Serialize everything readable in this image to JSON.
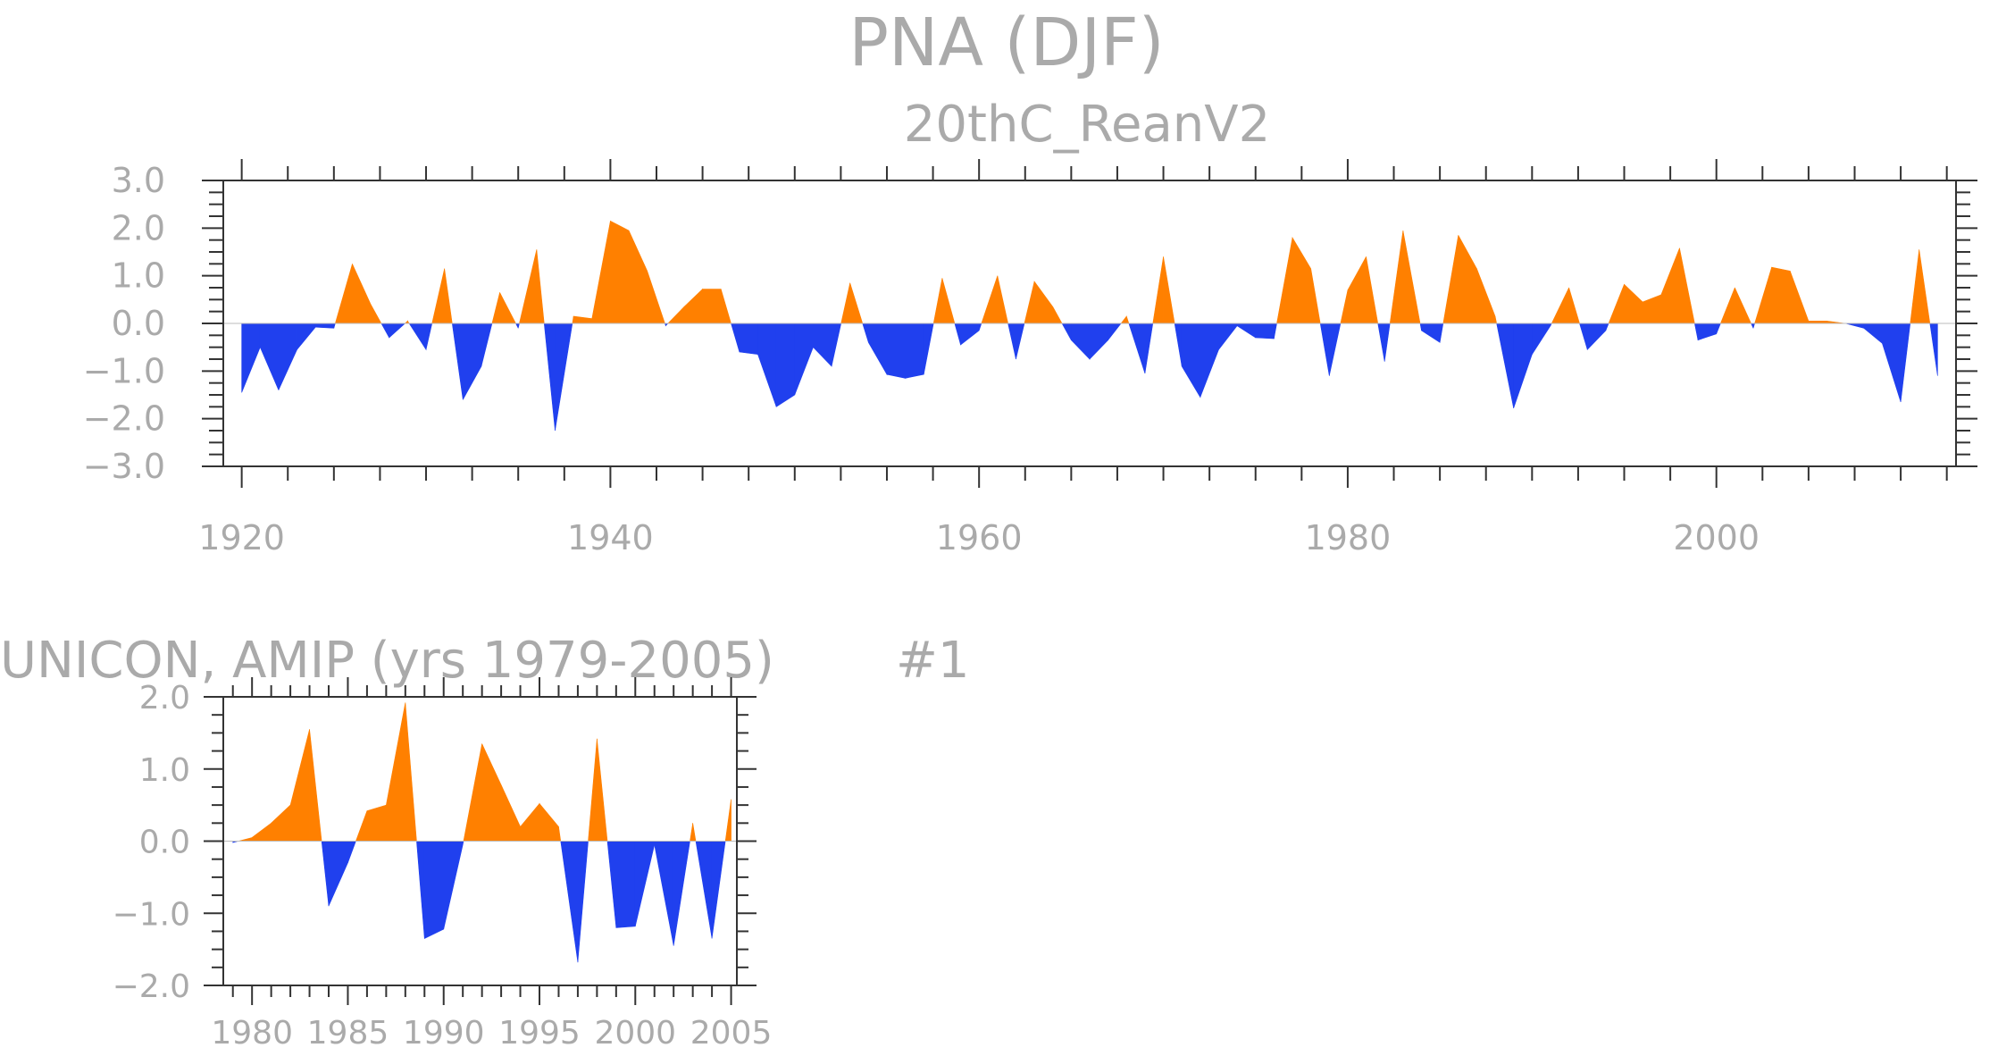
{
  "colors": {
    "positive": "#ff8000",
    "negative": "#2040ee",
    "axis": "#333333",
    "text": "#aaaaaa"
  },
  "main_title": "PNA (DJF)",
  "chart_data": [
    {
      "type": "area",
      "title": "PNA (DJF)",
      "subtitle": "20thC_ReanV2",
      "xlim": [
        1919,
        2013
      ],
      "ylim": [
        -3.0,
        3.0
      ],
      "xticks": [
        1920,
        1940,
        1960,
        1980,
        2000
      ],
      "xtick_labels": [
        "1920",
        "1940",
        "1960",
        "1980",
        "2000"
      ],
      "yticks": [
        3.0,
        2.0,
        1.0,
        0.0,
        -1.0,
        -2.0,
        -3.0
      ],
      "ytick_labels": [
        "3.0",
        "2.0",
        "1.0",
        "0.0",
        "−1.0",
        "−2.0",
        "−3.0"
      ],
      "x": [
        1920,
        1921,
        1922,
        1923,
        1924,
        1925,
        1926,
        1927,
        1928,
        1929,
        1930,
        1931,
        1932,
        1933,
        1934,
        1935,
        1936,
        1937,
        1938,
        1939,
        1940,
        1941,
        1942,
        1943,
        1944,
        1945,
        1946,
        1947,
        1948,
        1949,
        1950,
        1951,
        1952,
        1953,
        1954,
        1955,
        1956,
        1957,
        1958,
        1959,
        1960,
        1961,
        1962,
        1963,
        1964,
        1965,
        1966,
        1967,
        1968,
        1969,
        1970,
        1971,
        1972,
        1973,
        1974,
        1975,
        1976,
        1977,
        1978,
        1979,
        1980,
        1981,
        1982,
        1983,
        1984,
        1985,
        1986,
        1987,
        1988,
        1989,
        1990,
        1991,
        1992,
        1993,
        1994,
        1995,
        1996,
        1997,
        1998,
        1999,
        2000,
        2001,
        2002,
        2003,
        2004,
        2005,
        2006,
        2007,
        2008,
        2009,
        2010,
        2011,
        2012
      ],
      "values": [
        -1.45,
        -0.5,
        -1.4,
        -0.55,
        -0.08,
        -0.1,
        1.25,
        0.4,
        -0.3,
        0.05,
        -0.55,
        1.15,
        -1.6,
        -0.9,
        0.65,
        -0.1,
        1.55,
        -2.25,
        0.15,
        0.1,
        2.15,
        1.95,
        1.1,
        -0.05,
        0.35,
        0.72,
        0.72,
        -0.6,
        -0.65,
        -1.75,
        -1.5,
        -0.5,
        -0.9,
        0.85,
        -0.4,
        -1.07,
        -1.15,
        -1.07,
        0.95,
        -0.45,
        -0.15,
        1.0,
        -0.75,
        0.88,
        0.35,
        -0.35,
        -0.75,
        -0.35,
        0.15,
        -1.05,
        1.4,
        -0.9,
        -1.55,
        -0.55,
        -0.05,
        -0.3,
        -0.32,
        1.8,
        1.15,
        -1.1,
        0.7,
        1.4,
        -0.8,
        1.95,
        -0.15,
        -0.4,
        1.85,
        1.15,
        0.15,
        -1.78,
        -0.65,
        -0.05,
        0.75,
        -0.55,
        -0.15,
        0.82,
        0.45,
        0.6,
        1.58,
        -0.35,
        -0.22,
        0.75,
        -0.1,
        1.18,
        1.1,
        0.05,
        0.05,
        0.0,
        -0.1,
        -0.42,
        -1.65,
        1.55,
        -1.1
      ]
    },
    {
      "type": "area",
      "title": "UNICON, AMIP (yrs 1979-2005)",
      "annotation": "#1",
      "xlim": [
        1978.5,
        2005.3
      ],
      "ylim": [
        -2.0,
        2.0
      ],
      "xticks": [
        1980,
        1985,
        1990,
        1995,
        2000,
        2005
      ],
      "xtick_labels": [
        "1980",
        "1985",
        "1990",
        "1995",
        "2000",
        "2005"
      ],
      "yticks": [
        2.0,
        1.0,
        0.0,
        -1.0,
        -2.0
      ],
      "ytick_labels": [
        "2.0",
        "1.0",
        "0.0",
        "−1.0",
        "−2.0"
      ],
      "x": [
        1979,
        1980,
        1981,
        1982,
        1983,
        1984,
        1985,
        1986,
        1987,
        1988,
        1989,
        1990,
        1991,
        1992,
        1993,
        1994,
        1995,
        1996,
        1997,
        1998,
        1999,
        2000,
        2001,
        2002,
        2003,
        2004,
        2005
      ],
      "values": [
        -0.02,
        0.05,
        0.25,
        0.5,
        1.55,
        -0.9,
        -0.3,
        0.42,
        0.5,
        1.92,
        -1.35,
        -1.22,
        -0.05,
        1.35,
        0.78,
        0.2,
        0.52,
        0.2,
        -1.68,
        1.42,
        -1.2,
        -1.18,
        -0.05,
        -1.45,
        0.25,
        -1.35,
        0.58
      ]
    }
  ]
}
